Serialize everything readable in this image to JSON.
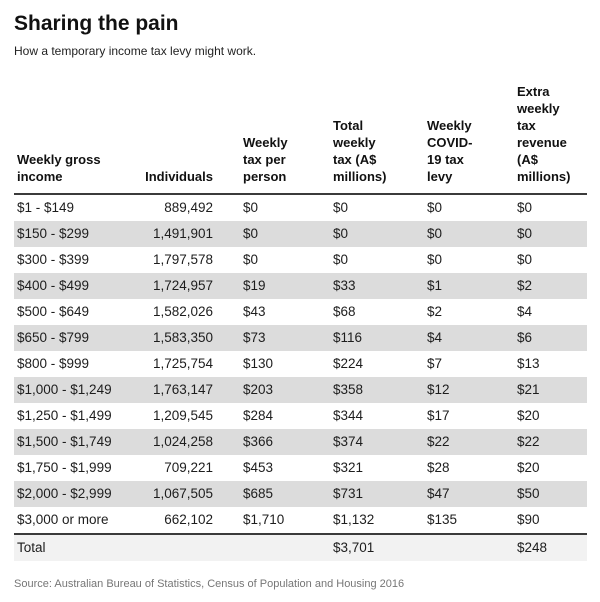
{
  "chart_data": {
    "type": "table",
    "title": "Sharing the pain",
    "subtitle": "How a temporary income tax levy might work.",
    "columns": [
      "Weekly gross income",
      "Individuals",
      "Weekly tax per person",
      "Total weekly tax (A$ millions)",
      "Weekly COVID-19 tax levy",
      "Extra weekly tax revenue (A$ millions)"
    ],
    "column_headers_wrapped": [
      "Weekly gross\nincome",
      "Individuals",
      "Weekly\ntax per\nperson",
      "Total\nweekly\ntax (A$\nmillions)",
      "Weekly\nCOVID-\n19 tax\nlevy",
      "Extra\nweekly\ntax\nrevenue\n(A$\nmillions)"
    ],
    "rows": [
      [
        "$1 - $149",
        "889,492",
        "$0",
        "$0",
        "$0",
        "$0"
      ],
      [
        "$150 - $299",
        "1,491,901",
        "$0",
        "$0",
        "$0",
        "$0"
      ],
      [
        "$300 - $399",
        "1,797,578",
        "$0",
        "$0",
        "$0",
        "$0"
      ],
      [
        "$400 - $499",
        "1,724,957",
        "$19",
        "$33",
        "$1",
        "$2"
      ],
      [
        "$500 - $649",
        "1,582,026",
        "$43",
        "$68",
        "$2",
        "$4"
      ],
      [
        "$650 - $799",
        "1,583,350",
        "$73",
        "$116",
        "$4",
        "$6"
      ],
      [
        "$800 - $999",
        "1,725,754",
        "$130",
        "$224",
        "$7",
        "$13"
      ],
      [
        "$1,000 - $1,249",
        "1,763,147",
        "$203",
        "$358",
        "$12",
        "$21"
      ],
      [
        "$1,250 - $1,499",
        "1,209,545",
        "$284",
        "$344",
        "$17",
        "$20"
      ],
      [
        "$1,500 - $1,749",
        "1,024,258",
        "$366",
        "$374",
        "$22",
        "$22"
      ],
      [
        "$1,750 - $1,999",
        "709,221",
        "$453",
        "$321",
        "$28",
        "$20"
      ],
      [
        "$2,000 - $2,999",
        "1,067,505",
        "$685",
        "$731",
        "$47",
        "$50"
      ],
      [
        "$3,000 or more",
        "662,102",
        "$1,710",
        "$1,132",
        "$135",
        "$90"
      ]
    ],
    "total_row": [
      "Total",
      "",
      "",
      "$3,701",
      "",
      "$248"
    ],
    "source": "Source: Australian Bureau of Statistics, Census of Population and Housing 2016"
  },
  "colors": {
    "text": "#1d1d1d",
    "border_dark": "#3b3b3b",
    "row_alt_bg": "#dcdcdc",
    "total_row_bg": "#f2f2f2",
    "source_text": "#767676"
  }
}
